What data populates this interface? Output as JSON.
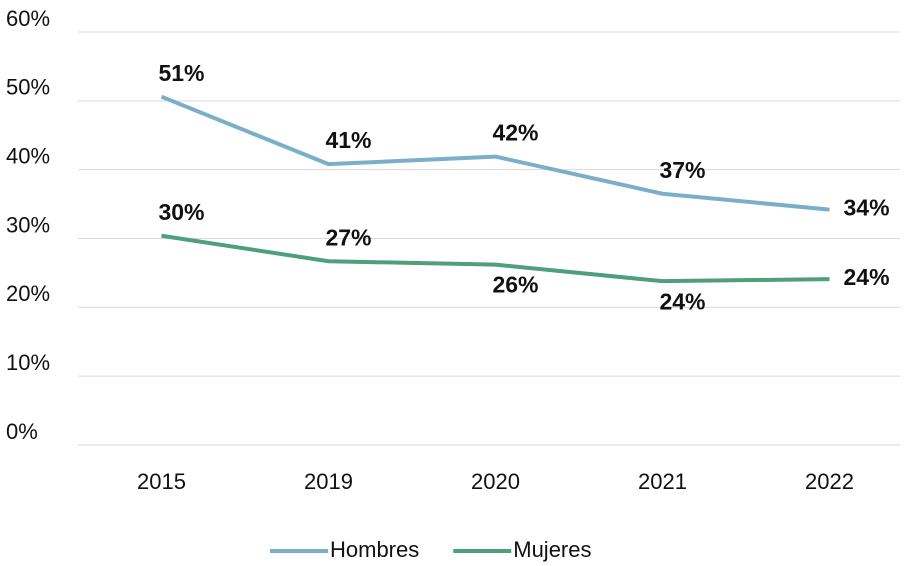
{
  "chart_data": {
    "type": "line",
    "categories": [
      "2015",
      "2019",
      "2020",
      "2021",
      "2022"
    ],
    "series": [
      {
        "name": "Hombres",
        "color": "#7bafc9",
        "values": [
          50.6,
          40.8,
          41.9,
          36.5,
          34.2
        ],
        "value_labels": [
          "51%",
          "41%",
          "42%",
          "37%",
          "34%"
        ]
      },
      {
        "name": "Mujeres",
        "color": "#4f9e7c",
        "values": [
          30.4,
          26.7,
          26.2,
          23.8,
          24.1
        ],
        "value_labels": [
          "30%",
          "27%",
          "26%",
          "24%",
          "24%"
        ]
      }
    ],
    "ylim": [
      0,
      60
    ],
    "yticks": [
      {
        "value": 0,
        "label": "0%"
      },
      {
        "value": 10,
        "label": "10%"
      },
      {
        "value": 20,
        "label": "20%"
      },
      {
        "value": 30,
        "label": "30%"
      },
      {
        "value": 40,
        "label": "40%"
      },
      {
        "value": 50,
        "label": "50%"
      },
      {
        "value": 60,
        "label": "60%"
      }
    ],
    "grid": true,
    "legend": "bottom"
  }
}
